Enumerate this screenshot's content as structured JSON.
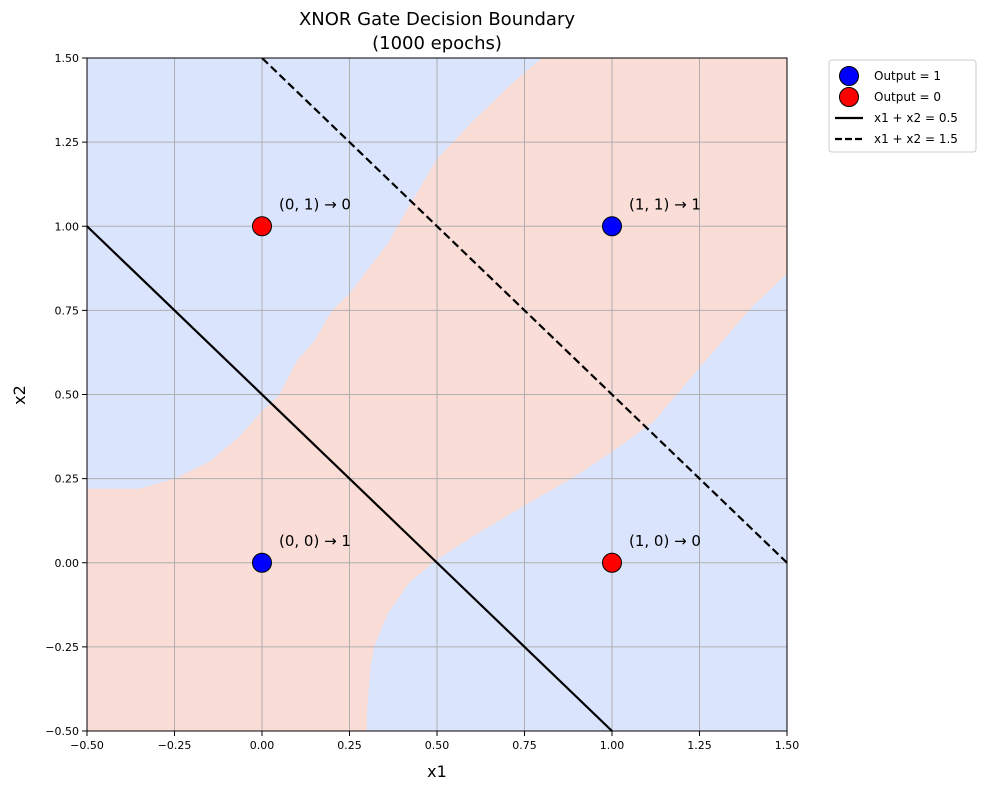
{
  "chart_data": {
    "type": "scatter",
    "title_line1": "XNOR Gate Decision Boundary",
    "title_line2": "(1000 epochs)",
    "xlabel": "x1",
    "ylabel": "x2",
    "xlim": [
      -0.5,
      1.5
    ],
    "ylim": [
      -0.5,
      1.5
    ],
    "xticks": [
      -0.5,
      -0.25,
      0.0,
      0.25,
      0.5,
      0.75,
      1.0,
      1.25,
      1.5
    ],
    "yticks": [
      -0.5,
      -0.25,
      0.0,
      0.25,
      0.5,
      0.75,
      1.0,
      1.25,
      1.5
    ],
    "xtick_labels": [
      "−0.50",
      "−0.25",
      "0.00",
      "0.25",
      "0.50",
      "0.75",
      "1.00",
      "1.25",
      "1.50"
    ],
    "ytick_labels": [
      "−0.50",
      "−0.25",
      "0.00",
      "0.25",
      "0.50",
      "0.75",
      "1.00",
      "1.25",
      "1.50"
    ],
    "grid": true,
    "legend_position": "outside-top-right",
    "colors": {
      "output1": "#0000ff",
      "output0": "#ff0000",
      "region1": "#dae4fc",
      "region0": "#f9ddd6",
      "grid": "#b0b0b0"
    },
    "points": [
      {
        "x": 0,
        "y": 0,
        "class": 1,
        "label": "(0, 0) → 1"
      },
      {
        "x": 0,
        "y": 1,
        "class": 0,
        "label": "(0, 1) → 0"
      },
      {
        "x": 1,
        "y": 0,
        "class": 0,
        "label": "(1, 0) → 0"
      },
      {
        "x": 1,
        "y": 1,
        "class": 1,
        "label": "(1, 1) → 1"
      }
    ],
    "series": [
      {
        "name": "Output = 1",
        "kind": "marker",
        "color": "#0000ff"
      },
      {
        "name": "Output = 0",
        "kind": "marker",
        "color": "#ff0000"
      },
      {
        "name": "x1 + x2 = 0.5",
        "kind": "line",
        "style": "solid",
        "c": 0.5
      },
      {
        "name": "x1 + x2 = 1.5",
        "kind": "line",
        "style": "dashed",
        "c": 1.5
      }
    ],
    "regions": [
      {
        "class": 0,
        "polygon": [
          [
            -0.5,
            -0.5
          ],
          [
            0.3,
            -0.5
          ],
          [
            0.3,
            -0.44
          ],
          [
            0.31,
            -0.31
          ],
          [
            0.32,
            -0.25
          ],
          [
            0.36,
            -0.15
          ],
          [
            0.42,
            -0.06
          ],
          [
            0.5,
            0.01
          ],
          [
            0.62,
            0.09
          ],
          [
            0.75,
            0.17
          ],
          [
            0.9,
            0.26
          ],
          [
            1.0,
            0.33
          ],
          [
            1.12,
            0.42
          ],
          [
            1.25,
            0.58
          ],
          [
            1.4,
            0.76
          ],
          [
            1.5,
            0.86
          ],
          [
            1.5,
            1.5
          ],
          [
            0.8,
            1.5
          ],
          [
            0.72,
            1.43
          ],
          [
            0.6,
            1.31
          ],
          [
            0.5,
            1.2
          ],
          [
            0.42,
            1.06
          ],
          [
            0.36,
            0.95
          ],
          [
            0.25,
            0.8
          ],
          [
            0.2,
            0.75
          ],
          [
            0.15,
            0.66
          ],
          [
            0.1,
            0.6
          ],
          [
            0.05,
            0.5
          ],
          [
            0.0,
            0.45
          ],
          [
            -0.07,
            0.37
          ],
          [
            -0.15,
            0.3
          ],
          [
            -0.25,
            0.25
          ],
          [
            -0.35,
            0.22
          ],
          [
            -0.5,
            0.22
          ]
        ]
      }
    ]
  }
}
